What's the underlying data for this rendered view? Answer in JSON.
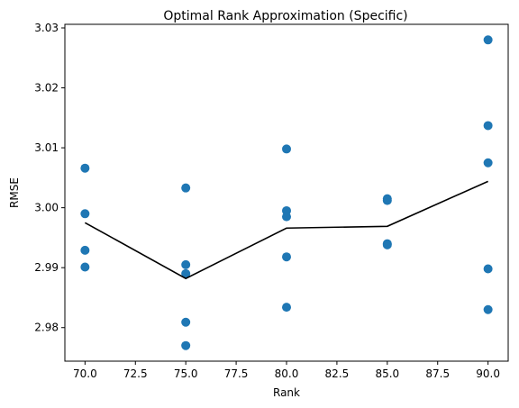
{
  "chart_data": {
    "type": "scatter",
    "title": "Optimal Rank Approximation (Specific)",
    "xlabel": "Rank",
    "ylabel": "RMSE",
    "xlim": [
      69.0,
      91.0
    ],
    "ylim": [
      2.9744,
      3.0306
    ],
    "xticks": [
      "70.0",
      "72.5",
      "75.0",
      "77.5",
      "80.0",
      "82.5",
      "85.0",
      "87.5",
      "90.0"
    ],
    "yticks": [
      "2.98",
      "2.99",
      "3.00",
      "3.01",
      "3.02",
      "3.03"
    ],
    "grid": false,
    "series": [
      {
        "kind": "scatter",
        "color": "#1f77b4",
        "points": [
          {
            "x": 70,
            "y": 3.0066
          },
          {
            "x": 70,
            "y": 2.999
          },
          {
            "x": 70,
            "y": 2.9929
          },
          {
            "x": 70,
            "y": 2.9901
          },
          {
            "x": 75,
            "y": 3.0033
          },
          {
            "x": 75,
            "y": 2.9905
          },
          {
            "x": 75,
            "y": 2.989
          },
          {
            "x": 75,
            "y": 2.9809
          },
          {
            "x": 75,
            "y": 2.977
          },
          {
            "x": 80,
            "y": 3.0098
          },
          {
            "x": 80,
            "y": 2.9995
          },
          {
            "x": 80,
            "y": 2.9985
          },
          {
            "x": 80,
            "y": 2.9918
          },
          {
            "x": 80,
            "y": 2.9834
          },
          {
            "x": 85,
            "y": 3.0015
          },
          {
            "x": 85,
            "y": 3.0012
          },
          {
            "x": 85,
            "y": 2.994
          },
          {
            "x": 85,
            "y": 2.9938
          },
          {
            "x": 90,
            "y": 3.028
          },
          {
            "x": 90,
            "y": 3.0137
          },
          {
            "x": 90,
            "y": 3.0075
          },
          {
            "x": 90,
            "y": 2.9898
          },
          {
            "x": 90,
            "y": 2.983
          }
        ]
      },
      {
        "kind": "line",
        "color": "#000000",
        "points": [
          {
            "x": 70,
            "y": 2.9975
          },
          {
            "x": 75,
            "y": 2.9882
          },
          {
            "x": 80,
            "y": 2.9966
          },
          {
            "x": 85,
            "y": 2.9969
          },
          {
            "x": 90,
            "y": 3.0044
          }
        ]
      }
    ]
  }
}
